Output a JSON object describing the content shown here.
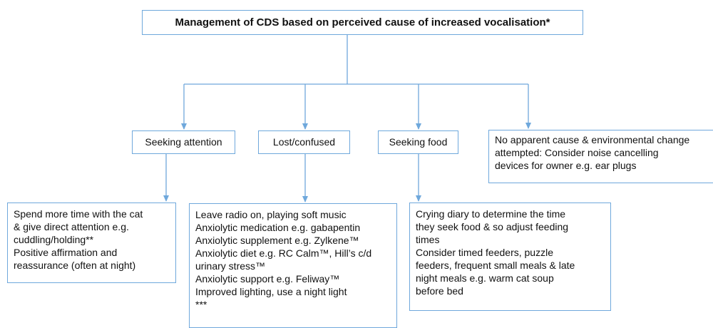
{
  "title": "Management of CDS based on perceived cause of increased vocalisation*",
  "causes": [
    {
      "label": "Seeking attention",
      "actions": [
        "Spend more time with the cat",
        "& give direct attention e.g.",
        "cuddling/holding**",
        "Positive affirmation and",
        "reassurance (often at night)"
      ]
    },
    {
      "label": "Lost/confused",
      "actions": [
        "Leave radio on, playing soft music",
        "Anxiolytic medication e.g. gabapentin",
        "Anxiolytic supplement e.g. Zylkene™",
        "Anxiolytic diet e.g. RC Calm™, Hill’s c/d",
        "urinary stress™",
        "Anxiolytic support e.g. Feliway™",
        "Improved lighting, use a night light",
        "***"
      ]
    },
    {
      "label": "Seeking food",
      "actions": [
        "Crying diary to determine the time",
        "they seek food & so adjust feeding",
        "times",
        "Consider timed feeders, puzzle",
        "feeders, frequent small meals & late",
        "night meals e.g. warm cat soup",
        "before bed"
      ]
    },
    {
      "label": [
        "No apparent cause & environmental change",
        "attempted: Consider noise cancelling",
        "devices for owner e.g. ear plugs"
      ]
    }
  ]
}
